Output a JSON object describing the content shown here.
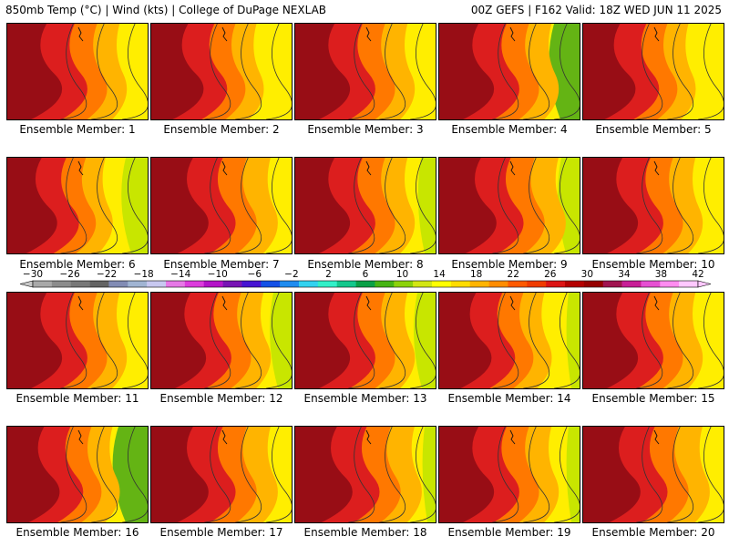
{
  "header": {
    "left_title": "850mb Temp (°C) | Wind (kts) | College of DuPage NEXLAB",
    "right_title": "00Z GEFS | F162 Valid: 18Z WED JUN 11 2025"
  },
  "members": [
    {
      "label": "Ensemble Member: 1",
      "hot": 0.8,
      "cool": 0.1
    },
    {
      "label": "Ensemble Member: 2",
      "hot": 0.75,
      "cool": 0.2
    },
    {
      "label": "Ensemble Member: 3",
      "hot": 0.8,
      "cool": 0.15
    },
    {
      "label": "Ensemble Member: 4",
      "hot": 0.8,
      "cool": 0.7
    },
    {
      "label": "Ensemble Member: 5",
      "hot": 0.75,
      "cool": 0.1
    },
    {
      "label": "Ensemble Member: 6",
      "hot": 0.7,
      "cool": 0.6
    },
    {
      "label": "Ensemble Member: 7",
      "hot": 0.85,
      "cool": 0.1
    },
    {
      "label": "Ensemble Member: 8",
      "hot": 0.8,
      "cool": 0.4
    },
    {
      "label": "Ensemble Member: 9",
      "hot": 0.85,
      "cool": 0.5
    },
    {
      "label": "Ensemble Member: 10",
      "hot": 0.8,
      "cool": 0.1
    },
    {
      "label": "Ensemble Member: 11",
      "hot": 0.8,
      "cool": 0.1
    },
    {
      "label": "Ensemble Member: 12",
      "hot": 0.8,
      "cool": 0.5
    },
    {
      "label": "Ensemble Member: 13",
      "hot": 0.8,
      "cool": 0.5
    },
    {
      "label": "Ensemble Member: 14",
      "hot": 0.75,
      "cool": 0.3
    },
    {
      "label": "Ensemble Member: 15",
      "hot": 0.8,
      "cool": 0.1
    },
    {
      "label": "Ensemble Member: 16",
      "hot": 0.75,
      "cool": 0.8
    },
    {
      "label": "Ensemble Member: 17",
      "hot": 0.85,
      "cool": 0.1
    },
    {
      "label": "Ensemble Member: 18",
      "hot": 0.85,
      "cool": 0.3
    },
    {
      "label": "Ensemble Member: 19",
      "hot": 0.8,
      "cool": 0.3
    },
    {
      "label": "Ensemble Member: 20",
      "hot": 0.85,
      "cool": 0.1
    }
  ],
  "colorbar": {
    "tick_labels": [
      "−30",
      "−26",
      "−22",
      "−18",
      "−14",
      "−10",
      "−6",
      "−2",
      "2",
      "6",
      "10",
      "14",
      "18",
      "22",
      "26",
      "30",
      "34",
      "38",
      "42"
    ],
    "colors": [
      "#a8a8a8",
      "#8c8c8c",
      "#787878",
      "#646464",
      "#828cb4",
      "#a0b4d2",
      "#c8c8f0",
      "#e678e6",
      "#dc3cdc",
      "#b414c8",
      "#7814b4",
      "#4614d2",
      "#1450e6",
      "#1e8cf0",
      "#32d2f0",
      "#32f0c8",
      "#14c88c",
      "#0aa046",
      "#46b414",
      "#8cd20a",
      "#d2e614",
      "#ffff00",
      "#ffdc00",
      "#ffb400",
      "#ff8c00",
      "#ff5a00",
      "#f03c00",
      "#dc1414",
      "#b40000",
      "#960000",
      "#a01450",
      "#c81e96",
      "#e650d2",
      "#ff8cf0",
      "#ffc8ff"
    ]
  },
  "map_colors": {
    "hot": "#8c0a14",
    "red": "#dc1e1e",
    "orange": "#ff7800",
    "amber": "#ffb400",
    "yellow": "#ffee00",
    "lime": "#c8e600",
    "green": "#64b414"
  }
}
